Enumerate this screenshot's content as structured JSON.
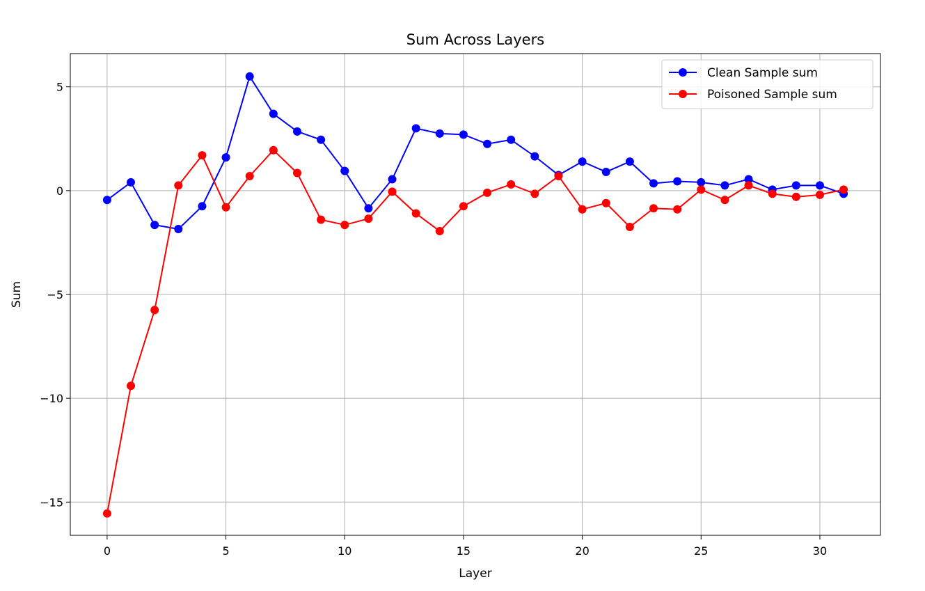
{
  "chart_data": {
    "type": "line",
    "title": "Sum Across Layers",
    "xlabel": "Layer",
    "ylabel": "Sum",
    "xlim": [
      -1.55,
      32.55
    ],
    "ylim": [
      -16.6,
      6.6
    ],
    "xticks": [
      0,
      5,
      10,
      15,
      20,
      25,
      30
    ],
    "yticks": [
      5,
      0,
      -5,
      -10,
      -15
    ],
    "ytick_labels": [
      "5",
      "0",
      "−5",
      "−10",
      "−15"
    ],
    "grid": true,
    "legend_position": "top-right",
    "x": [
      0,
      1,
      2,
      3,
      4,
      5,
      6,
      7,
      8,
      9,
      10,
      11,
      12,
      13,
      14,
      15,
      16,
      17,
      18,
      19,
      20,
      21,
      22,
      23,
      24,
      25,
      26,
      27,
      28,
      29,
      30,
      31
    ],
    "series": [
      {
        "name": "Clean Sample sum",
        "color": "#0000ff",
        "values": [
          -0.45,
          0.4,
          -1.65,
          -1.85,
          -0.75,
          1.6,
          5.5,
          3.7,
          2.85,
          2.45,
          0.95,
          -0.85,
          0.55,
          3.0,
          2.75,
          2.7,
          2.25,
          2.45,
          1.65,
          0.75,
          1.4,
          0.9,
          1.4,
          0.35,
          0.45,
          0.4,
          0.25,
          0.55,
          0.05,
          0.25,
          0.25,
          -0.15
        ]
      },
      {
        "name": "Poisoned Sample sum",
        "color": "#ff0000",
        "values": [
          -15.55,
          -9.4,
          -5.75,
          0.25,
          1.7,
          -0.8,
          0.7,
          1.95,
          0.85,
          -1.4,
          -1.65,
          -1.35,
          -0.05,
          -1.1,
          -1.95,
          -0.75,
          -0.1,
          0.3,
          -0.15,
          0.7,
          -0.9,
          -0.6,
          -1.75,
          -0.85,
          -0.9,
          0.05,
          -0.45,
          0.25,
          -0.15,
          -0.3,
          -0.2,
          0.05
        ]
      }
    ]
  }
}
